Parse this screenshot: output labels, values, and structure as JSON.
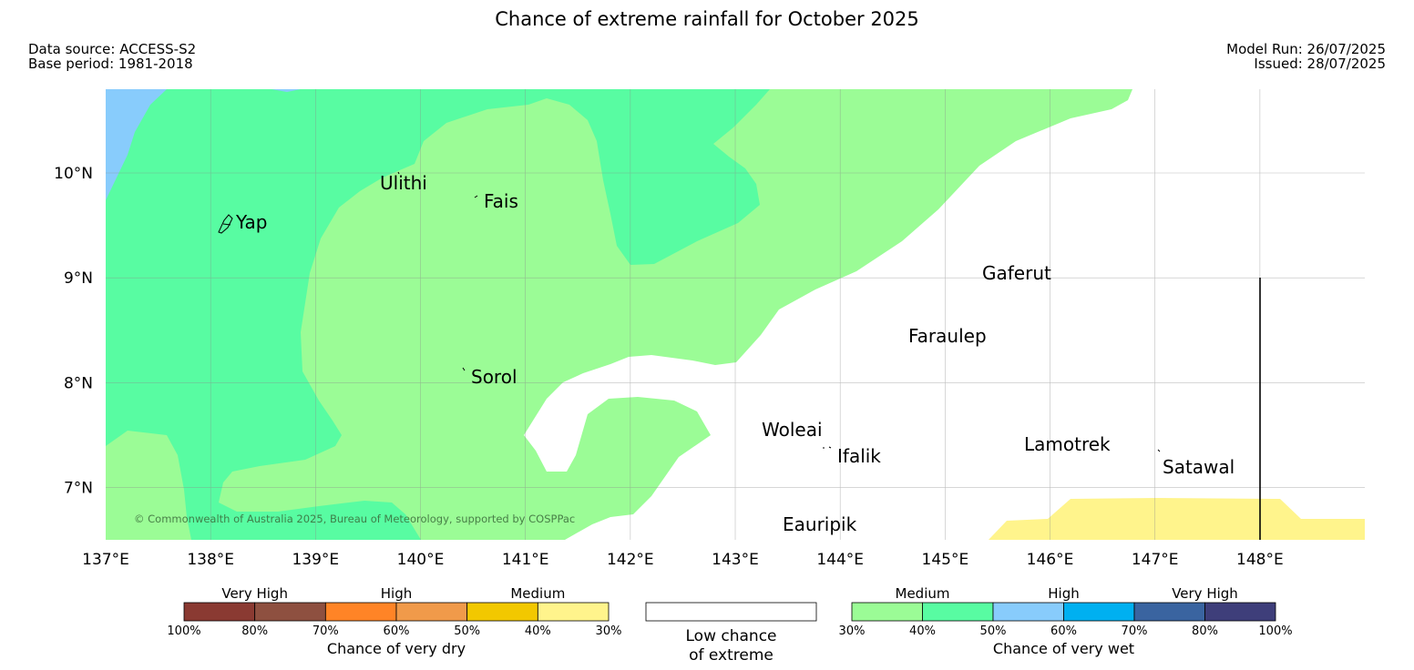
{
  "title": "Chance of extreme rainfall for October 2025",
  "meta": {
    "data_source": "Data source: ACCESS-S2",
    "base_period": "Base period: 1981-2018",
    "model_run": "Model Run: 26/07/2025",
    "issued": "Issued: 28/07/2025"
  },
  "copyright": "© Commonwealth of Australia 2025, Bureau of Meteorology, supported by COSPPac",
  "axes": {
    "lon_ticks": [
      "137°E",
      "138°E",
      "139°E",
      "140°E",
      "141°E",
      "142°E",
      "143°E",
      "144°E",
      "145°E",
      "146°E",
      "147°E",
      "148°E"
    ],
    "lat_ticks": [
      "10°N",
      "9°N",
      "8°N",
      "7°N"
    ]
  },
  "places": [
    {
      "key": "yap",
      "label": "Yap"
    },
    {
      "key": "ulithi",
      "label": "Ulithi"
    },
    {
      "key": "fais",
      "label": "Fais"
    },
    {
      "key": "sorol",
      "label": "Sorol"
    },
    {
      "key": "gaferut",
      "label": "Gaferut"
    },
    {
      "key": "faraulep",
      "label": "Faraulep"
    },
    {
      "key": "woleai",
      "label": "Woleai"
    },
    {
      "key": "ifalik",
      "label": "Ifalik"
    },
    {
      "key": "lamotrek",
      "label": "Lamotrek"
    },
    {
      "key": "satawal",
      "label": "Satawal"
    },
    {
      "key": "eauripik",
      "label": "Eauripik"
    }
  ],
  "legend": {
    "dry": {
      "groups": [
        "Very High",
        "High",
        "Medium"
      ],
      "colors": [
        "#8a3a32",
        "#8e5040",
        "#ff8426",
        "#f09a4a",
        "#f2c800",
        "#fff48c"
      ],
      "ticks": [
        "100%",
        "80%",
        "70%",
        "60%",
        "50%",
        "40%",
        "30%"
      ],
      "title": "Chance of very dry"
    },
    "low": {
      "line1": "Low chance",
      "line2": "of extreme"
    },
    "wet": {
      "groups": [
        "Medium",
        "High",
        "Very High"
      ],
      "colors": [
        "#9bfc96",
        "#58fca2",
        "#88ccfc",
        "#00b0f0",
        "#3a64a0",
        "#3e3e7a"
      ],
      "ticks": [
        "30%",
        "40%",
        "50%",
        "60%",
        "70%",
        "80%",
        "100%"
      ],
      "title": "Chance of very wet"
    }
  },
  "colors": {
    "medium_wet_30_40": "#9bfc96",
    "medium_wet_40_50": "#58fca2",
    "high_wet_50_60": "#88ccfc",
    "medium_dry_30_40": "#fff48c",
    "low_chance": "#ffffff"
  }
}
